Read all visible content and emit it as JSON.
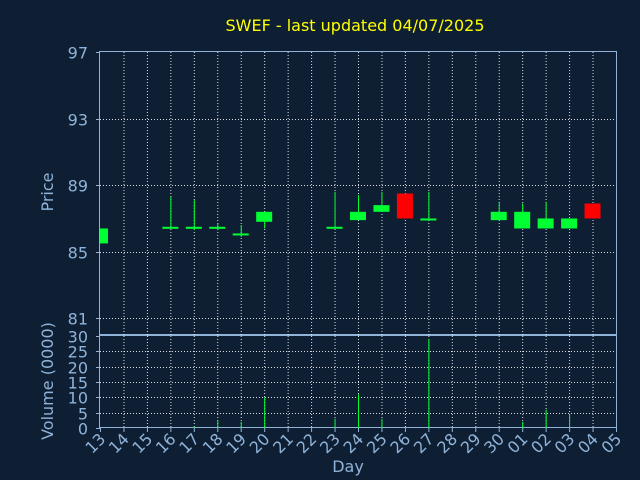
{
  "colors": {
    "up": "#00ff33",
    "down": "#ff0000",
    "title": "#ffff00",
    "axis": "#8fb3d9",
    "background": "#0f1f33"
  },
  "chart_data": {
    "type": "candlestick",
    "title": "SWEF - last updated 04/07/2025",
    "xlabel": "Day",
    "price_panel": {
      "ylabel": "Price",
      "ylim": [
        80,
        97
      ],
      "yticks": [
        81,
        85,
        89,
        93,
        97
      ],
      "grid": true
    },
    "volume_panel": {
      "ylabel": "Volume (0000)",
      "ylim": [
        0,
        30
      ],
      "yticks": [
        0,
        5,
        10,
        15,
        20,
        25,
        30
      ],
      "grid": true
    },
    "x_tick_labels": [
      "13",
      "14",
      "15",
      "16",
      "17",
      "18",
      "19",
      "20",
      "21",
      "22",
      "23",
      "24",
      "25",
      "26",
      "27",
      "28",
      "29",
      "30",
      "01",
      "02",
      "03",
      "04",
      "05"
    ],
    "candles": [
      {
        "x": "13",
        "open": 85.5,
        "close": 86.4,
        "high": 86.4,
        "low": 85.5,
        "volume": 0
      },
      {
        "x": "16",
        "open": 86.4,
        "close": 86.5,
        "high": 88.3,
        "low": 86.4,
        "volume": 0
      },
      {
        "x": "17",
        "open": 86.4,
        "close": 86.5,
        "high": 88.1,
        "low": 86.3,
        "volume": 0.5
      },
      {
        "x": "18",
        "open": 86.4,
        "close": 86.5,
        "high": 86.7,
        "low": 86.3,
        "volume": 2.5
      },
      {
        "x": "19",
        "open": 86.0,
        "close": 86.1,
        "high": 86.6,
        "low": 85.9,
        "volume": 2
      },
      {
        "x": "20",
        "open": 86.8,
        "close": 87.4,
        "high": 87.4,
        "low": 86.4,
        "volume": 10
      },
      {
        "x": "23",
        "open": 86.4,
        "close": 86.5,
        "high": 88.6,
        "low": 86.4,
        "volume": 3
      },
      {
        "x": "24",
        "open": 86.9,
        "close": 87.4,
        "high": 88.4,
        "low": 86.9,
        "volume": 11
      },
      {
        "x": "25",
        "open": 87.4,
        "close": 87.8,
        "high": 88.6,
        "low": 87.4,
        "volume": 3
      },
      {
        "x": "26",
        "open": 88.5,
        "close": 87.0,
        "high": 88.5,
        "low": 87.0,
        "volume": 0
      },
      {
        "x": "27",
        "open": 86.9,
        "close": 87.0,
        "high": 88.6,
        "low": 86.9,
        "volume": 29
      },
      {
        "x": "30",
        "open": 86.9,
        "close": 87.4,
        "high": 88.0,
        "low": 86.9,
        "volume": 0
      },
      {
        "x": "01",
        "open": 86.4,
        "close": 87.4,
        "high": 87.9,
        "low": 86.4,
        "volume": 2
      },
      {
        "x": "02",
        "open": 86.4,
        "close": 87.0,
        "high": 88.0,
        "low": 86.4,
        "volume": 6
      },
      {
        "x": "03",
        "open": 86.4,
        "close": 87.0,
        "high": 87.0,
        "low": 86.4,
        "volume": 4.5
      },
      {
        "x": "04",
        "open": 87.9,
        "close": 87.0,
        "high": 87.9,
        "low": 87.0,
        "volume": 0
      }
    ]
  }
}
